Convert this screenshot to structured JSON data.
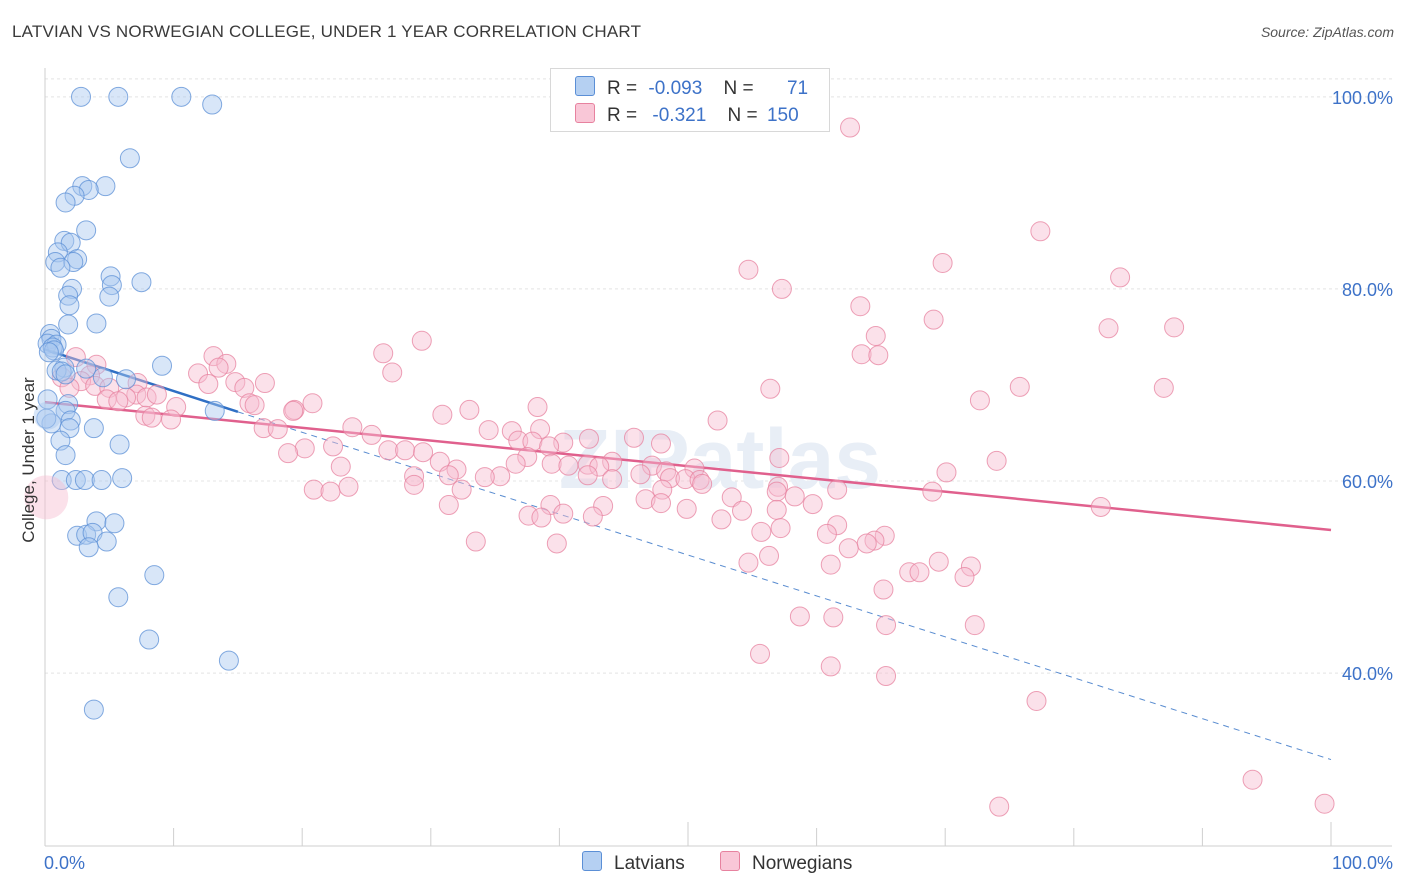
{
  "title": "LATVIAN VS NORWEGIAN COLLEGE, UNDER 1 YEAR CORRELATION CHART",
  "source": "Source: ZipAtlas.com",
  "legend": {
    "latvian": {
      "r_label": "R =",
      "r_value": "-0.093",
      "n_label": "N =",
      "n_value": "71"
    },
    "norwegian": {
      "r_label": "R =",
      "r_value": "-0.321",
      "n_label": "N =",
      "n_value": "150"
    }
  },
  "colors": {
    "latvian_fill": "#a9c8f0",
    "latvian_stroke": "#5b8fd6",
    "latvian_line": "#2f6fc4",
    "norwegian_fill": "#f7bcd0",
    "norwegian_stroke": "#e7829f",
    "norwegian_line": "#e0608d",
    "tick_label": "#3d72c8",
    "grid": "#e4e4e4"
  },
  "chart_data": {
    "type": "scatter",
    "xlabel": "",
    "ylabel": "College, Under 1 year",
    "xlim": [
      0,
      100
    ],
    "ylim": [
      22,
      103
    ],
    "x_tick_labels": [
      "0.0%",
      "100.0%"
    ],
    "y_ticks": [
      40,
      60,
      80,
      100
    ],
    "y_tick_labels": [
      "40.0%",
      "60.0%",
      "80.0%",
      "100.0%"
    ],
    "grid": true,
    "legend_position": "top-center",
    "watermark": "ZIPatlas",
    "series": [
      {
        "name": "Latvians",
        "points": [
          [
            2.8,
            100
          ],
          [
            5.7,
            100
          ],
          [
            10.6,
            100
          ],
          [
            13.0,
            99.2
          ],
          [
            6.6,
            93.6
          ],
          [
            2.9,
            90.7
          ],
          [
            4.7,
            90.7
          ],
          [
            3.4,
            90.3
          ],
          [
            2.3,
            89.7
          ],
          [
            1.6,
            89.0
          ],
          [
            3.2,
            86.1
          ],
          [
            1.5,
            85.0
          ],
          [
            2.0,
            84.8
          ],
          [
            1.0,
            83.8
          ],
          [
            0.8,
            82.8
          ],
          [
            2.5,
            83.1
          ],
          [
            2.2,
            82.8
          ],
          [
            1.2,
            82.2
          ],
          [
            5.1,
            81.3
          ],
          [
            5.2,
            80.4
          ],
          [
            7.5,
            80.7
          ],
          [
            2.1,
            80.0
          ],
          [
            1.8,
            79.3
          ],
          [
            5.0,
            79.2
          ],
          [
            1.9,
            78.3
          ],
          [
            4.0,
            76.4
          ],
          [
            1.8,
            76.3
          ],
          [
            0.4,
            75.3
          ],
          [
            0.5,
            74.8
          ],
          [
            0.2,
            74.3
          ],
          [
            0.9,
            74.2
          ],
          [
            0.6,
            73.9
          ],
          [
            0.7,
            73.6
          ],
          [
            0.3,
            73.4
          ],
          [
            9.1,
            72.0
          ],
          [
            1.5,
            71.8
          ],
          [
            3.2,
            71.7
          ],
          [
            0.9,
            71.5
          ],
          [
            1.3,
            71.4
          ],
          [
            1.6,
            71.1
          ],
          [
            4.5,
            70.8
          ],
          [
            6.3,
            70.6
          ],
          [
            1.8,
            68.0
          ],
          [
            1.6,
            67.3
          ],
          [
            13.2,
            67.3
          ],
          [
            2.0,
            66.3
          ],
          [
            0.5,
            66.0
          ],
          [
            1.9,
            65.5
          ],
          [
            3.8,
            65.5
          ],
          [
            1.2,
            64.2
          ],
          [
            5.8,
            63.8
          ],
          [
            1.6,
            62.7
          ],
          [
            1.3,
            60.1
          ],
          [
            2.4,
            60.1
          ],
          [
            3.1,
            60.1
          ],
          [
            4.4,
            60.1
          ],
          [
            6.0,
            60.3
          ],
          [
            4.0,
            55.8
          ],
          [
            5.4,
            55.6
          ],
          [
            2.5,
            54.3
          ],
          [
            3.2,
            54.4
          ],
          [
            3.7,
            54.6
          ],
          [
            4.8,
            53.7
          ],
          [
            3.4,
            53.1
          ],
          [
            8.5,
            50.2
          ],
          [
            5.7,
            47.9
          ],
          [
            8.1,
            43.5
          ],
          [
            14.3,
            41.3
          ],
          [
            3.8,
            36.2
          ],
          [
            0.1,
            66.5
          ],
          [
            0.2,
            68.5
          ]
        ],
        "fit_line": [
          [
            0,
            73.7
          ],
          [
            15,
            67.2
          ]
        ],
        "fit_extension": [
          [
            15,
            67.2
          ],
          [
            100,
            31.0
          ]
        ]
      },
      {
        "name": "Norwegians",
        "points": [
          [
            62.6,
            96.8
          ],
          [
            77.4,
            86.0
          ],
          [
            69.8,
            82.7
          ],
          [
            54.7,
            82.0
          ],
          [
            83.6,
            81.2
          ],
          [
            57.3,
            80.0
          ],
          [
            63.4,
            78.2
          ],
          [
            69.1,
            76.8
          ],
          [
            82.7,
            75.9
          ],
          [
            87.8,
            76.0
          ],
          [
            64.6,
            75.1
          ],
          [
            29.3,
            74.6
          ],
          [
            26.3,
            73.3
          ],
          [
            63.5,
            73.2
          ],
          [
            64.8,
            73.1
          ],
          [
            13.1,
            73.0
          ],
          [
            2.4,
            72.9
          ],
          [
            14.1,
            72.2
          ],
          [
            4.0,
            72.1
          ],
          [
            13.5,
            71.8
          ],
          [
            11.9,
            71.2
          ],
          [
            27.0,
            71.3
          ],
          [
            3.5,
            71.0
          ],
          [
            1.3,
            70.8
          ],
          [
            2.8,
            70.4
          ],
          [
            14.8,
            70.3
          ],
          [
            7.2,
            70.2
          ],
          [
            12.7,
            70.1
          ],
          [
            17.1,
            70.2
          ],
          [
            3.9,
            69.9
          ],
          [
            5.0,
            69.7
          ],
          [
            75.8,
            69.8
          ],
          [
            87.0,
            69.7
          ],
          [
            56.4,
            69.6
          ],
          [
            1.9,
            69.7
          ],
          [
            15.5,
            69.7
          ],
          [
            7.1,
            69.0
          ],
          [
            6.3,
            68.7
          ],
          [
            4.8,
            68.5
          ],
          [
            5.7,
            68.3
          ],
          [
            7.9,
            68.7
          ],
          [
            8.7,
            69.0
          ],
          [
            72.7,
            68.4
          ],
          [
            20.8,
            68.1
          ],
          [
            15.9,
            68.1
          ],
          [
            16.3,
            67.9
          ],
          [
            10.2,
            67.7
          ],
          [
            19.4,
            67.4
          ],
          [
            33.0,
            67.4
          ],
          [
            38.3,
            67.7
          ],
          [
            19.3,
            67.3
          ],
          [
            9.8,
            66.4
          ],
          [
            7.8,
            66.8
          ],
          [
            8.3,
            66.6
          ],
          [
            30.9,
            66.9
          ],
          [
            52.3,
            66.3
          ],
          [
            17.0,
            65.5
          ],
          [
            18.1,
            65.4
          ],
          [
            23.9,
            65.6
          ],
          [
            34.5,
            65.3
          ],
          [
            36.3,
            65.2
          ],
          [
            38.5,
            65.4
          ],
          [
            25.4,
            64.8
          ],
          [
            45.8,
            64.5
          ],
          [
            42.3,
            64.4
          ],
          [
            36.8,
            64.2
          ],
          [
            37.9,
            64.1
          ],
          [
            47.9,
            63.9
          ],
          [
            40.3,
            64.0
          ],
          [
            39.2,
            63.6
          ],
          [
            22.4,
            63.6
          ],
          [
            20.2,
            63.4
          ],
          [
            26.7,
            63.2
          ],
          [
            28.0,
            63.2
          ],
          [
            18.9,
            62.9
          ],
          [
            29.4,
            63.0
          ],
          [
            37.5,
            62.5
          ],
          [
            57.1,
            62.4
          ],
          [
            74.0,
            62.1
          ],
          [
            30.7,
            62.0
          ],
          [
            44.1,
            62.0
          ],
          [
            36.6,
            61.8
          ],
          [
            39.4,
            61.8
          ],
          [
            40.7,
            61.6
          ],
          [
            42.2,
            61.7
          ],
          [
            47.2,
            61.6
          ],
          [
            43.1,
            61.5
          ],
          [
            23.0,
            61.5
          ],
          [
            32.0,
            61.2
          ],
          [
            50.5,
            61.3
          ],
          [
            48.3,
            61.0
          ],
          [
            70.1,
            60.9
          ],
          [
            46.3,
            60.7
          ],
          [
            42.2,
            60.6
          ],
          [
            28.7,
            60.5
          ],
          [
            35.4,
            60.5
          ],
          [
            31.4,
            60.6
          ],
          [
            34.2,
            60.4
          ],
          [
            44.1,
            60.2
          ],
          [
            48.6,
            60.3
          ],
          [
            49.8,
            60.2
          ],
          [
            50.9,
            60.1
          ],
          [
            51.1,
            59.7
          ],
          [
            57.0,
            59.4
          ],
          [
            48.0,
            59.1
          ],
          [
            20.9,
            59.1
          ],
          [
            61.6,
            59.1
          ],
          [
            22.2,
            58.9
          ],
          [
            23.6,
            59.4
          ],
          [
            28.7,
            59.6
          ],
          [
            32.4,
            59.1
          ],
          [
            56.9,
            58.9
          ],
          [
            69.0,
            58.9
          ],
          [
            58.3,
            58.4
          ],
          [
            53.4,
            58.3
          ],
          [
            46.7,
            58.1
          ],
          [
            47.9,
            57.7
          ],
          [
            59.7,
            57.6
          ],
          [
            31.4,
            57.5
          ],
          [
            39.3,
            57.5
          ],
          [
            43.4,
            57.4
          ],
          [
            49.9,
            57.1
          ],
          [
            54.2,
            56.9
          ],
          [
            56.9,
            57.0
          ],
          [
            82.1,
            57.3
          ],
          [
            40.3,
            56.6
          ],
          [
            37.6,
            56.4
          ],
          [
            42.6,
            56.3
          ],
          [
            38.6,
            56.2
          ],
          [
            52.6,
            56.0
          ],
          [
            61.6,
            55.4
          ],
          [
            57.2,
            55.1
          ],
          [
            55.7,
            54.7
          ],
          [
            60.8,
            54.5
          ],
          [
            65.3,
            54.3
          ],
          [
            64.5,
            53.8
          ],
          [
            63.9,
            53.5
          ],
          [
            33.5,
            53.7
          ],
          [
            39.8,
            53.5
          ],
          [
            62.5,
            53.0
          ],
          [
            56.3,
            52.2
          ],
          [
            54.7,
            51.5
          ],
          [
            61.1,
            51.3
          ],
          [
            69.5,
            51.6
          ],
          [
            72.0,
            51.1
          ],
          [
            67.2,
            50.5
          ],
          [
            68.0,
            50.5
          ],
          [
            71.5,
            50.0
          ],
          [
            65.2,
            48.7
          ],
          [
            61.3,
            45.8
          ],
          [
            58.7,
            45.9
          ],
          [
            65.4,
            45.0
          ],
          [
            72.3,
            45.0
          ],
          [
            55.6,
            42.0
          ],
          [
            61.1,
            40.7
          ],
          [
            65.4,
            39.7
          ],
          [
            77.1,
            37.1
          ],
          [
            93.9,
            28.9
          ],
          [
            74.2,
            26.1
          ],
          [
            99.5,
            26.4
          ]
        ],
        "fit_line": [
          [
            0,
            68.2
          ],
          [
            100,
            54.9
          ]
        ]
      }
    ]
  },
  "bottom_legend": [
    {
      "label": "Latvians"
    },
    {
      "label": "Norwegians"
    }
  ]
}
